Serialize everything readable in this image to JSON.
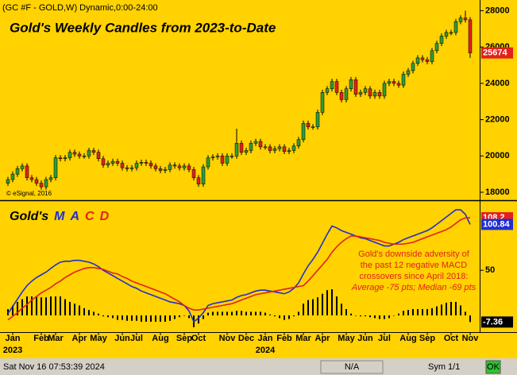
{
  "header": "(GC #F - GOLD,W) Dynamic,0:00-24:00",
  "status_bar": {
    "timestamp": "Sat Nov 16 07:53:39 2024",
    "field": "N/A",
    "sym": "Sym 1/1",
    "ok": "OK"
  },
  "chart_data": [
    {
      "type": "candlestick",
      "title": "Gold's Weekly Candles from 2023-to-Date",
      "copyright": "© eSignal, 2016",
      "up_color": "#2e9b3a",
      "down_color": "#e3201b",
      "wick_color": "#000000",
      "last_label_color": "#e3201b",
      "ylim": [
        17650,
        28590
      ],
      "yticks": [
        18000,
        20000,
        22000,
        24000,
        26000,
        28000
      ],
      "open": [
        18500,
        18700,
        19000,
        19300,
        19450,
        18800,
        18700,
        18500,
        18300,
        18700,
        18800,
        19900,
        19850,
        19900,
        20200,
        20100,
        20000,
        20000,
        20300,
        20200,
        19850,
        19500,
        19600,
        19700,
        19600,
        19350,
        19300,
        19350,
        19600,
        19650,
        19600,
        19450,
        19300,
        19200,
        19250,
        19500,
        19450,
        19350,
        19450,
        19250,
        18800,
        18450,
        19400,
        19900,
        19950,
        20000,
        19600,
        20000,
        20000,
        20700,
        20200,
        20300,
        20700,
        20800,
        20500,
        20500,
        20300,
        20400,
        20500,
        20250,
        20300,
        20550,
        20900,
        21800,
        21600,
        21600,
        22400,
        23500,
        23700,
        24100,
        23500,
        23100,
        23700,
        24200,
        23400,
        23500,
        23700,
        23300,
        23500,
        23300,
        24000,
        24100,
        24000,
        23900,
        24500,
        24700,
        25100,
        25400,
        25300,
        25200,
        25800,
        26200,
        26600,
        26800,
        26800,
        27400,
        27600,
        27500
      ],
      "high": [
        18850,
        19150,
        19450,
        19600,
        19600,
        18950,
        18850,
        18650,
        18850,
        18950,
        20050,
        20050,
        20050,
        20350,
        20350,
        20250,
        20150,
        20450,
        20450,
        20350,
        20000,
        19750,
        19850,
        19850,
        19750,
        19500,
        19500,
        19750,
        19800,
        19800,
        19750,
        19600,
        19450,
        19400,
        19650,
        19650,
        19600,
        19600,
        19600,
        19400,
        18950,
        19550,
        20050,
        20100,
        20150,
        20150,
        20150,
        20150,
        21500,
        20850,
        20450,
        20850,
        20950,
        20950,
        20650,
        20650,
        20550,
        20650,
        20650,
        20450,
        20700,
        21050,
        21950,
        21950,
        21750,
        22550,
        23650,
        23850,
        24250,
        24250,
        23650,
        23850,
        24350,
        24350,
        23650,
        23850,
        23850,
        23650,
        23650,
        24150,
        24250,
        24250,
        24150,
        24650,
        24850,
        25250,
        25550,
        25550,
        25450,
        25950,
        26350,
        26750,
        26950,
        26950,
        27550,
        27750,
        28000,
        27650
      ],
      "low": [
        18350,
        18550,
        18850,
        19150,
        18650,
        18550,
        18350,
        18150,
        18150,
        18550,
        18650,
        19700,
        19700,
        19750,
        19950,
        19850,
        19850,
        19850,
        20050,
        19700,
        19350,
        19350,
        19450,
        19450,
        19200,
        19150,
        19150,
        19200,
        19450,
        19450,
        19300,
        19150,
        19050,
        19050,
        19100,
        19300,
        19200,
        19200,
        19100,
        18650,
        18300,
        18300,
        19250,
        19750,
        19800,
        19450,
        19450,
        19850,
        19850,
        20050,
        20050,
        20150,
        20550,
        20350,
        20350,
        20150,
        20150,
        20250,
        20100,
        20100,
        20150,
        20400,
        20750,
        21450,
        21450,
        21450,
        22250,
        23350,
        23550,
        23350,
        22950,
        22950,
        23550,
        23250,
        23250,
        23350,
        23150,
        23150,
        23150,
        23150,
        23850,
        23850,
        23750,
        23750,
        24350,
        24550,
        24950,
        25150,
        25050,
        25050,
        25650,
        26050,
        26450,
        26650,
        26650,
        27250,
        27350,
        25400
      ],
      "close": [
        18700,
        19000,
        19300,
        19450,
        18800,
        18700,
        18500,
        18300,
        18700,
        18800,
        19900,
        19850,
        19900,
        20200,
        20100,
        20000,
        20000,
        20300,
        20200,
        19850,
        19500,
        19600,
        19700,
        19600,
        19350,
        19300,
        19350,
        19600,
        19650,
        19600,
        19450,
        19300,
        19200,
        19250,
        19500,
        19450,
        19350,
        19450,
        19250,
        18800,
        18450,
        19400,
        19900,
        19950,
        20000,
        19600,
        20000,
        20000,
        20700,
        20200,
        20300,
        20700,
        20800,
        20500,
        20500,
        20300,
        20400,
        20500,
        20250,
        20300,
        20550,
        20900,
        21800,
        21600,
        21600,
        22400,
        23500,
        23700,
        24100,
        23500,
        23100,
        23700,
        24200,
        23400,
        23500,
        23700,
        23300,
        23500,
        23300,
        24000,
        24100,
        24000,
        23900,
        24500,
        24700,
        25100,
        25400,
        25300,
        25200,
        25800,
        26200,
        26600,
        26800,
        26800,
        27400,
        27600,
        27500,
        25674
      ]
    },
    {
      "type": "macd",
      "title_parts": [
        "Gold's",
        "M",
        "A",
        "C",
        "D"
      ],
      "title_colors": [
        "#000000",
        "#1f2fd0",
        "#1f2fd0",
        "#e3201b",
        "#e3201b"
      ],
      "annotation": [
        "Gold's downside adversity of",
        "the past 12 negative MACD",
        "crossovers since April 2018:",
        "Average -75 pts; Median -69 pts"
      ],
      "annotation_color": "#e3201b",
      "ylim": [
        -18.5,
        125
      ],
      "yticks": [
        50
      ],
      "categories": [
        null,
        "Jan",
        null,
        null,
        null,
        null,
        null,
        "Feb",
        null,
        null,
        "Mar",
        null,
        null,
        null,
        null,
        "Apr",
        null,
        null,
        null,
        "May",
        null,
        null,
        null,
        null,
        "Jun",
        null,
        null,
        "Jul",
        null,
        null,
        null,
        null,
        "Aug",
        null,
        null,
        null,
        null,
        "Sep",
        null,
        null,
        "Oct",
        null,
        null,
        null,
        null,
        null,
        "Nov",
        null,
        null,
        null,
        "Dec",
        null,
        null,
        null,
        "Jan",
        null,
        null,
        null,
        "Feb",
        null,
        null,
        null,
        "Mar",
        null,
        null,
        null,
        "Apr",
        null,
        null,
        null,
        null,
        "May",
        null,
        null,
        null,
        "Jun",
        null,
        null,
        null,
        "Jul",
        null,
        null,
        null,
        null,
        "Aug",
        null,
        null,
        null,
        "Sep",
        null,
        null,
        null,
        null,
        "Oct",
        null,
        null,
        null,
        "Nov"
      ],
      "years": [
        "2023",
        "2024"
      ],
      "series": [
        {
          "color": "#1f2fd0",
          "values": [
            2,
            10,
            18,
            26,
            33,
            38,
            42,
            45,
            48,
            52,
            56,
            59,
            60,
            60,
            61,
            61,
            60,
            59,
            57,
            54,
            50,
            47,
            44,
            41,
            38,
            35,
            32,
            30,
            27,
            25,
            23,
            21,
            19,
            17,
            15,
            14,
            13,
            11,
            5,
            -7,
            -3,
            3,
            11,
            13,
            14,
            15,
            16,
            17,
            20,
            22,
            23,
            25,
            27,
            28,
            28,
            27,
            26,
            25,
            24,
            26,
            30,
            36,
            46,
            55,
            62,
            70,
            80,
            90,
            99,
            97,
            94,
            92,
            90,
            88,
            86,
            85,
            83,
            81,
            79,
            77,
            77,
            79,
            81,
            84,
            86,
            88,
            90,
            92,
            94,
            97,
            101,
            105,
            109,
            113,
            117,
            117,
            112,
            100.84
          ]
        },
        {
          "color": "#e3201b",
          "values": [
            -5,
            -1,
            3,
            8,
            12,
            17,
            21,
            25,
            28,
            31,
            35,
            38,
            42,
            45,
            48,
            50,
            52,
            53,
            53,
            52,
            51,
            49,
            47,
            46,
            43,
            41,
            38,
            36,
            34,
            32,
            30,
            28,
            26,
            24,
            21,
            18,
            15,
            11,
            8,
            6,
            6,
            7,
            8,
            9,
            10,
            11,
            12,
            13,
            15,
            17,
            19,
            21,
            23,
            24,
            25,
            26,
            27,
            28,
            29,
            30,
            31,
            32,
            33,
            38,
            44,
            50,
            56,
            62,
            70,
            76,
            81,
            85,
            88,
            88,
            87,
            86,
            85,
            84,
            83,
            81,
            80,
            79,
            79,
            79,
            80,
            81,
            83,
            85,
            87,
            89,
            91,
            93,
            95,
            98,
            102,
            106,
            108,
            108.2
          ]
        }
      ],
      "histogram": {
        "color": "#000000",
        "last_label_color": "#000000",
        "values": [
          7,
          11,
          15,
          18,
          21,
          21,
          21,
          20,
          20,
          21,
          21,
          21,
          18,
          15,
          13,
          11,
          8,
          6,
          4,
          2,
          -1,
          -2,
          -3,
          -5,
          -5,
          -6,
          -6,
          -6,
          -7,
          -7,
          -7,
          -7,
          -7,
          -7,
          -6,
          -4,
          -2,
          0,
          -3,
          -13,
          -9,
          -4,
          3,
          4,
          4,
          4,
          4,
          4,
          5,
          5,
          4,
          4,
          4,
          4,
          3,
          1,
          -1,
          -3,
          -5,
          -4,
          -1,
          4,
          13,
          17,
          18,
          20,
          24,
          28,
          29,
          21,
          13,
          7,
          2,
          0,
          -1,
          -1,
          -2,
          -3,
          -4,
          -4,
          -3,
          0,
          2,
          5,
          6,
          7,
          7,
          7,
          7,
          8,
          10,
          12,
          14,
          15,
          15,
          11,
          4,
          -7.36
        ]
      }
    }
  ]
}
